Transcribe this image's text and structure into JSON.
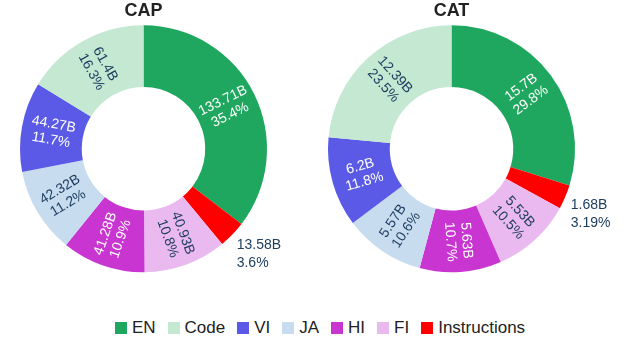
{
  "chart_data": [
    {
      "type": "doughnut",
      "title": "CAP",
      "legend": "bottom",
      "categories": [
        "EN",
        "Code",
        "VI",
        "JA",
        "HI",
        "FI",
        "Instructions"
      ],
      "colors": [
        "#1fa75f",
        "#c4e8d2",
        "#5a5ae6",
        "#c8dcf0",
        "#c935d0",
        "#eab9f0",
        "#ff0000"
      ],
      "values": [
        133.71,
        61.4,
        44.27,
        42.32,
        41.28,
        40.93,
        13.58
      ],
      "value_labels": [
        "133.71B",
        "61.4B",
        "44.27B",
        "42.32B",
        "41.28B",
        "40.93B",
        "13.58B"
      ],
      "shares": [
        35.4,
        16.3,
        11.7,
        11.2,
        10.9,
        10.8,
        3.6
      ],
      "share_labels": [
        "35.4%",
        "16.3%",
        "11.7%",
        "11.2%",
        "10.9%",
        "10.8%",
        "3.6%"
      ]
    },
    {
      "type": "doughnut",
      "title": "CAT",
      "legend": "bottom",
      "categories": [
        "EN",
        "Code",
        "VI",
        "JA",
        "HI",
        "FI",
        "Instructions"
      ],
      "colors": [
        "#1fa75f",
        "#c4e8d2",
        "#5a5ae6",
        "#c8dcf0",
        "#c935d0",
        "#eab9f0",
        "#ff0000"
      ],
      "values": [
        15.7,
        12.39,
        6.2,
        5.57,
        5.63,
        5.53,
        1.68
      ],
      "value_labels": [
        "15.7B",
        "12.39B",
        "6.2B",
        "5.57B",
        "5.63B",
        "5.53B",
        "1.68B"
      ],
      "shares": [
        29.8,
        23.5,
        11.8,
        10.6,
        10.7,
        10.5,
        3.19
      ],
      "share_labels": [
        "29.8%",
        "23.5%",
        "11.8%",
        "10.6%",
        "10.7%",
        "10.5%",
        "3.19%"
      ]
    }
  ]
}
